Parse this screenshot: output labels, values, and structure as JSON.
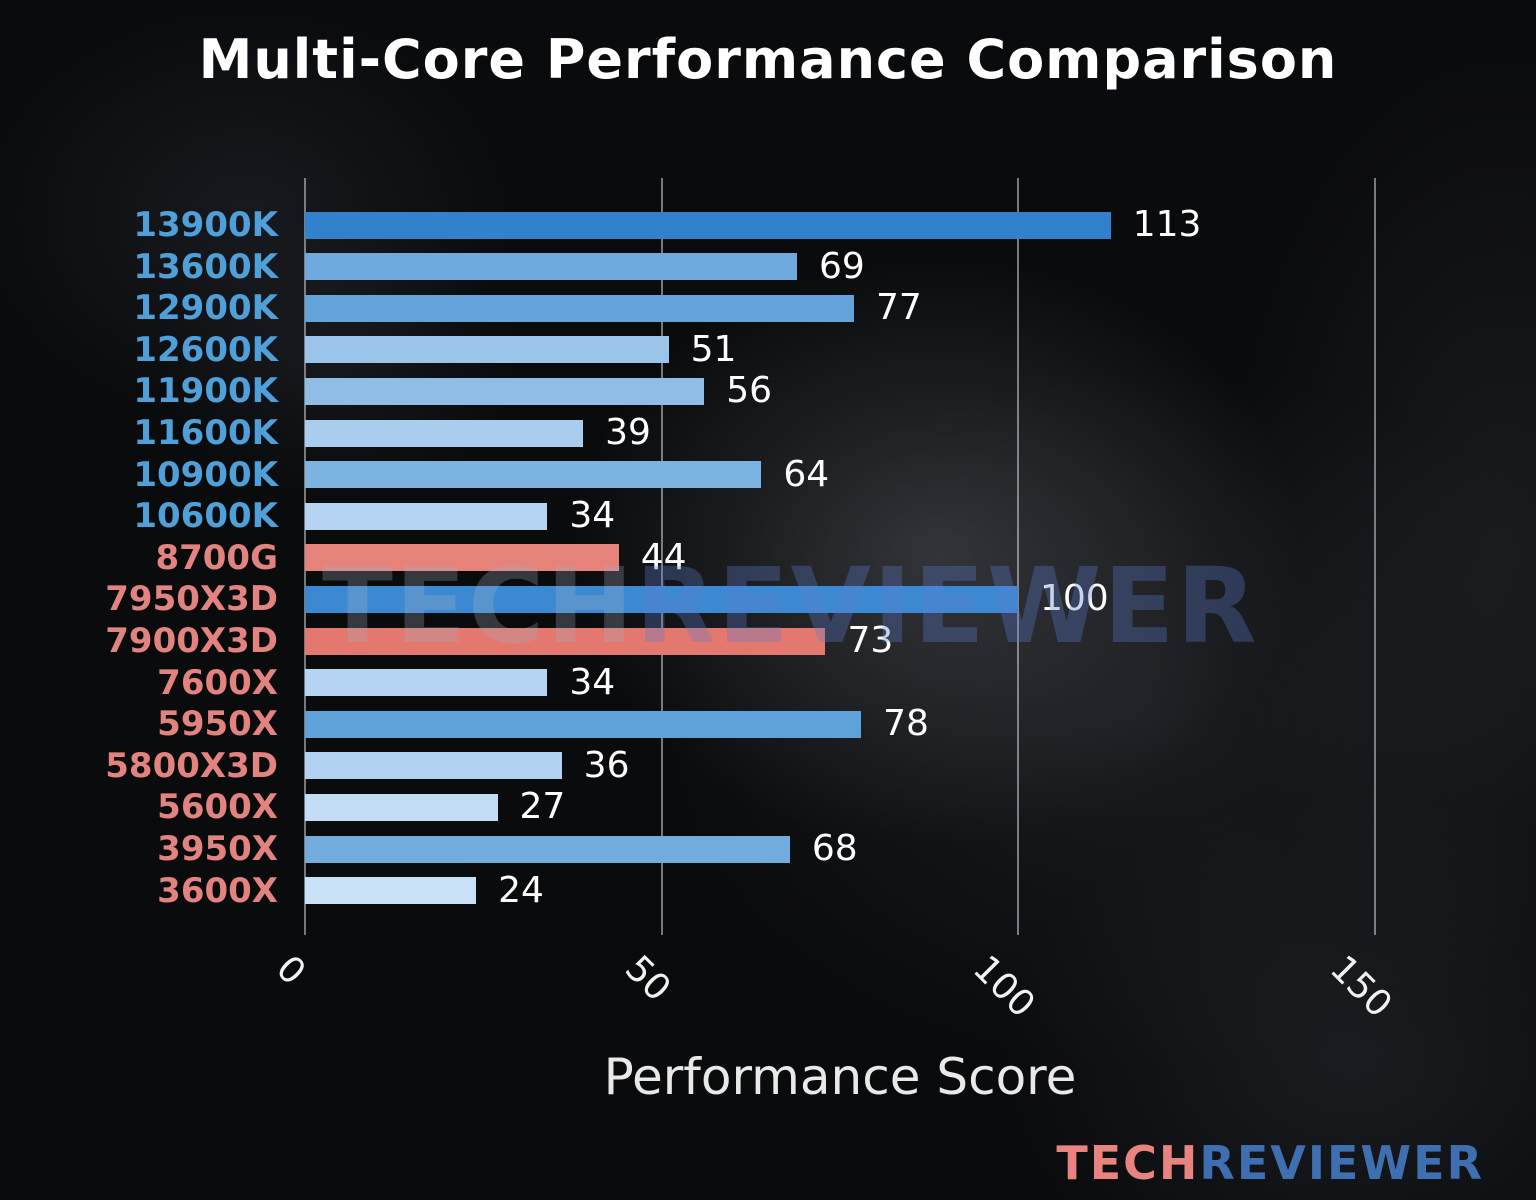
{
  "chart_data": {
    "type": "bar",
    "orientation": "horizontal",
    "title": "Multi-Core Performance Comparison",
    "xlabel": "Performance Score",
    "xlim": [
      0,
      159
    ],
    "xticks": [
      0,
      50,
      100,
      150
    ],
    "grid": "vertical-gridlines",
    "legend": "none",
    "rows": [
      {
        "label": "13900K",
        "value": 113,
        "bar_color": "#3181cc",
        "label_color": "#4f9fd9"
      },
      {
        "label": "13600K",
        "value": 69,
        "bar_color": "#6faade",
        "label_color": "#4f9fd9"
      },
      {
        "label": "12900K",
        "value": 77,
        "bar_color": "#64a4da",
        "label_color": "#4f9fd9"
      },
      {
        "label": "12600K",
        "value": 51,
        "bar_color": "#9ac4ea",
        "label_color": "#4f9fd9"
      },
      {
        "label": "11900K",
        "value": 56,
        "bar_color": "#8fbde6",
        "label_color": "#4f9fd9"
      },
      {
        "label": "11600K",
        "value": 39,
        "bar_color": "#a8cdee",
        "label_color": "#4f9fd9"
      },
      {
        "label": "10900K",
        "value": 64,
        "bar_color": "#7db3e1",
        "label_color": "#4f9fd9"
      },
      {
        "label": "10600K",
        "value": 34,
        "bar_color": "#b4d4f1",
        "label_color": "#4f9fd9"
      },
      {
        "label": "8700G",
        "value": 44,
        "bar_color": "#e5837a",
        "label_color": "#e2837f"
      },
      {
        "label": "7950X3D",
        "value": 100,
        "bar_color": "#3d89d1",
        "label_color": "#e2837f"
      },
      {
        "label": "7900X3D",
        "value": 73,
        "bar_color": "#e4786e",
        "label_color": "#e2837f"
      },
      {
        "label": "7600X",
        "value": 34,
        "bar_color": "#b4d4f1",
        "label_color": "#e2837f"
      },
      {
        "label": "5950X",
        "value": 78,
        "bar_color": "#5fa1d9",
        "label_color": "#e2837f"
      },
      {
        "label": "5800X3D",
        "value": 36,
        "bar_color": "#b0d2f0",
        "label_color": "#e2837f"
      },
      {
        "label": "5600X",
        "value": 27,
        "bar_color": "#c1dcf4",
        "label_color": "#e2837f"
      },
      {
        "label": "3950X",
        "value": 68,
        "bar_color": "#72acde",
        "label_color": "#e2837f"
      },
      {
        "label": "3600X",
        "value": 24,
        "bar_color": "#c9e1f6",
        "label_color": "#e2837f"
      }
    ]
  },
  "watermark": {
    "tech": "TECH",
    "reviewer": "REVIEWER",
    "tech_color": "rgba(165,175,195,0.28)",
    "reviewer_color": "rgba(95,125,205,0.33)"
  },
  "branding": {
    "tech": "TECH",
    "reviewer": "REVIEWER",
    "tech_color": "#e8837f",
    "reviewer_color": "#3e6fb0"
  }
}
